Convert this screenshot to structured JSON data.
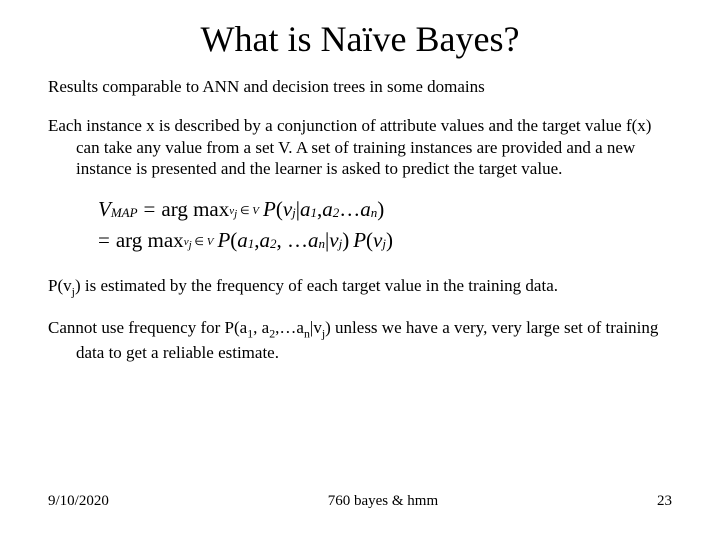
{
  "title": "What is Naïve Bayes?",
  "para1": "Results comparable to ANN and decision trees in some domains",
  "para2": "Each instance x is described by a conjunction of attribute values and the target value f(x) can take any value from a set V. A set of training instances are provided and a new instance is presented and the learner is asked to predict the target value.",
  "formula": {
    "lhs_var": "V",
    "lhs_sub": "MAP",
    "argmax": "arg max",
    "argmax_sub": "v",
    "argmax_sub_j": "j",
    "argmax_in": " ∈ ",
    "argmax_set": "V",
    "line1_rhs_P": "P",
    "line1_rhs_open": "(",
    "line1_v": "v",
    "line1_j": "j",
    "line1_bar": " | ",
    "line1_a1": "a",
    "line1_1": "1",
    "line1_comma": ", ",
    "line1_a2": "a",
    "line1_2": "2",
    "line1_dots": "…",
    "line1_an": "a",
    "line1_n": "n",
    "line1_close": ")",
    "line2_eq": "=",
    "line2_P1": "P",
    "line2_open1": "(",
    "line2_a1": "a",
    "line2_1": "1",
    "line2_c1": ", ",
    "line2_a2": "a",
    "line2_2": "2",
    "line2_c2": ", …",
    "line2_an": "a",
    "line2_n": "n",
    "line2_bar": " | ",
    "line2_v": "v",
    "line2_j": "j",
    "line2_close1": ")",
    "line2_P2": "P",
    "line2_open2": "(",
    "line2_v2": "v",
    "line2_j2": "j",
    "line2_close2": ")"
  },
  "para3_pre": "P(v",
  "para3_j": "j",
  "para3_post": ") is estimated by the frequency of each target value in the training data.",
  "para4_pre": "Cannot use frequency for P(a",
  "para4_1": "1",
  "para4_mid1": ", a",
  "para4_2": "2",
  "para4_mid2": ",…a",
  "para4_n": "n",
  "para4_mid3": "|v",
  "para4_j": "j",
  "para4_post": ") unless we have a very, very large set of training data to get a reliable estimate.",
  "footer": {
    "date": "9/10/2020",
    "center": "760 bayes & hmm",
    "page": "23"
  },
  "colors": {
    "background": "#ffffff",
    "text": "#000000"
  },
  "fonts": {
    "title_size": 36,
    "body_size": 17,
    "formula_size": 21,
    "footer_size": 15,
    "family": "Times New Roman"
  }
}
